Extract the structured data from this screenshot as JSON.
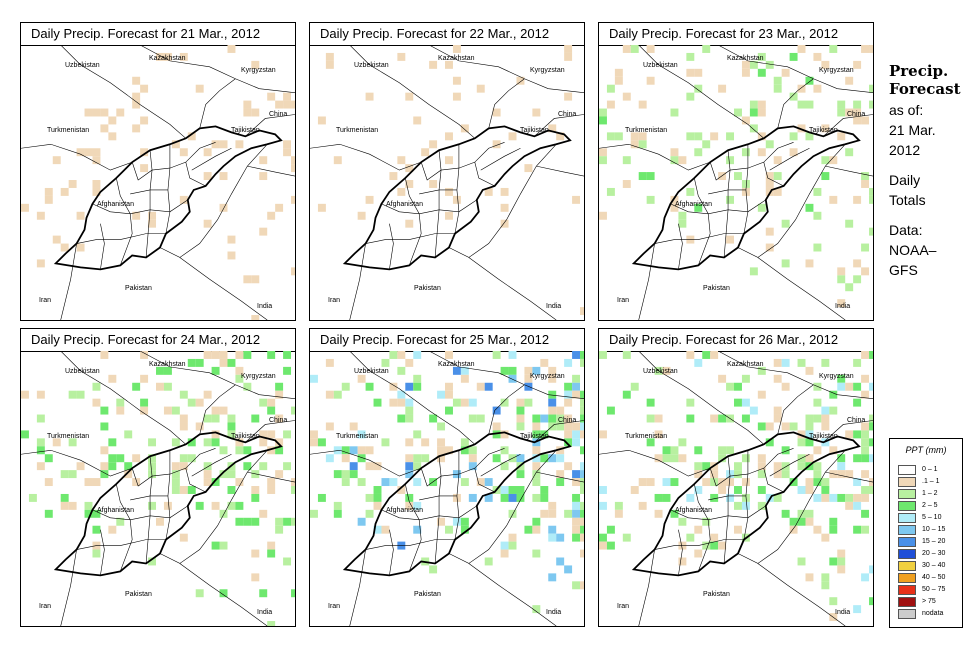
{
  "panels": [
    {
      "title": "Daily Precip. Forecast for  21 Mar., 2012",
      "intensity": 0.25
    },
    {
      "title": "Daily Precip. Forecast for  22 Mar., 2012",
      "intensity": 0.18
    },
    {
      "title": "Daily Precip. Forecast for  23 Mar., 2012",
      "intensity": 0.5
    },
    {
      "title": "Daily Precip. Forecast for  24 Mar., 2012",
      "intensity": 0.62
    },
    {
      "title": "Daily Precip. Forecast for  25 Mar., 2012",
      "intensity": 0.9
    },
    {
      "title": "Daily Precip. Forecast for  26 Mar., 2012",
      "intensity": 0.75
    }
  ],
  "countries": {
    "kazakhstan": "Kazakhstan",
    "uzbekistan": "Uzbekistan",
    "kyrgyzstan": "Kyrgyzstan",
    "turkmenistan": "Turkmenistan",
    "tajikistan": "Tajikistan",
    "china": "China",
    "afghanistan": "Afghanistan",
    "pakistan": "Pakistan",
    "iran": "Iran",
    "india": "India"
  },
  "sidebar": {
    "title_line1": "Precip.",
    "title_line2": "Forecast",
    "asof": "as of:",
    "date_line1": "21 Mar.",
    "date_line2": "2012",
    "totals_line1": "Daily",
    "totals_line2": "Totals",
    "data_line1": "Data:",
    "data_line2": "NOAA–",
    "data_line3": "GFS"
  },
  "legend": {
    "title": "PPT (mm)",
    "items": [
      {
        "label": "0 – 1",
        "color": "#ffffff"
      },
      {
        "label": ".1 – 1",
        "color": "#f0d8b8"
      },
      {
        "label": "1 – 2",
        "color": "#b8f0a0"
      },
      {
        "label": "2 – 5",
        "color": "#6ee86e"
      },
      {
        "label": "5 – 10",
        "color": "#b0ecf8"
      },
      {
        "label": "10 – 15",
        "color": "#7ec8f0"
      },
      {
        "label": "15 – 20",
        "color": "#4a90e8"
      },
      {
        "label": "20 – 30",
        "color": "#1f4fd8"
      },
      {
        "label": "30 – 40",
        "color": "#f0d040"
      },
      {
        "label": "40 – 50",
        "color": "#f0a020"
      },
      {
        "label": "50 – 75",
        "color": "#e83018"
      },
      {
        "label": "> 75",
        "color": "#a01010"
      },
      {
        "label": "nodata",
        "color": "#cccccc"
      }
    ]
  }
}
